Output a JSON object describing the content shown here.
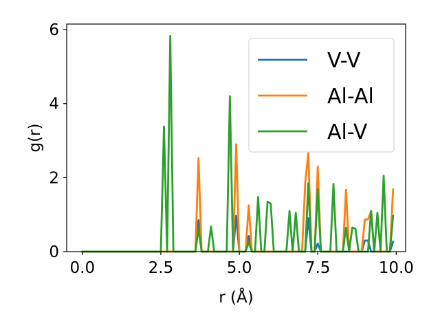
{
  "chart_data": {
    "type": "line",
    "title": "",
    "xlabel": "r (Å)",
    "ylabel": "g(r)",
    "xlim": [
      -0.5,
      10.3
    ],
    "ylim": [
      0,
      6.15
    ],
    "xticks": [
      0.0,
      2.5,
      5.0,
      7.5,
      10.0
    ],
    "xtick_labels": [
      "0.0",
      "2.5",
      "5.0",
      "7.5",
      "10.0"
    ],
    "yticks": [
      0,
      2,
      4,
      6
    ],
    "ytick_labels": [
      "0",
      "2",
      "4",
      "6"
    ],
    "grid": false,
    "legend_position": "top-right",
    "colors": {
      "V-V": "#1f77b4",
      "Al-Al": "#ff7f0e",
      "Al-V": "#2ca02c"
    },
    "x": [
      0.0,
      0.1,
      0.2,
      0.3,
      0.4,
      0.5,
      0.6,
      0.7,
      0.8,
      0.9,
      1.0,
      1.1,
      1.2,
      1.3,
      1.4,
      1.5,
      1.6,
      1.7,
      1.8,
      1.9,
      2.0,
      2.1,
      2.2,
      2.3,
      2.4,
      2.5,
      2.6,
      2.7,
      2.8,
      2.9,
      3.0,
      3.1,
      3.2,
      3.3,
      3.4,
      3.5,
      3.6,
      3.7,
      3.8,
      3.9,
      4.0,
      4.1,
      4.2,
      4.3,
      4.4,
      4.5,
      4.6,
      4.7,
      4.8,
      4.9,
      5.0,
      5.1,
      5.2,
      5.3,
      5.4,
      5.5,
      5.6,
      5.7,
      5.8,
      5.9,
      6.0,
      6.1,
      6.2,
      6.3,
      6.4,
      6.5,
      6.6,
      6.7,
      6.8,
      6.9,
      7.0,
      7.1,
      7.2,
      7.3,
      7.4,
      7.5,
      7.6,
      7.7,
      7.8,
      7.9,
      8.0,
      8.1,
      8.2,
      8.3,
      8.4,
      8.5,
      8.6,
      8.7,
      8.8,
      8.9,
      9.0,
      9.1,
      9.2,
      9.3,
      9.4,
      9.5,
      9.6,
      9.7,
      9.8,
      9.9
    ],
    "series": [
      {
        "name": "V-V",
        "values": [
          0,
          0,
          0,
          0,
          0,
          0,
          0,
          0,
          0,
          0,
          0,
          0,
          0,
          0,
          0,
          0,
          0,
          0,
          0,
          0,
          0,
          0,
          0,
          0,
          0,
          0,
          0,
          0,
          0,
          0,
          0,
          0,
          0,
          0,
          0,
          0,
          0,
          0.85,
          0,
          0,
          0,
          0,
          0,
          0,
          0,
          0,
          0,
          0,
          0,
          0.97,
          0,
          0,
          0,
          0.42,
          0,
          0,
          0,
          0,
          0,
          0,
          0,
          0,
          0,
          0,
          0,
          0,
          0,
          0,
          0,
          0,
          0,
          0,
          0.9,
          0,
          0,
          0.22,
          0,
          0,
          0,
          0,
          0,
          0,
          0,
          0,
          0,
          0,
          0,
          0,
          0,
          0,
          0.3,
          0.3,
          0,
          0,
          0,
          0,
          0,
          0,
          0,
          0.27
        ]
      },
      {
        "name": "Al-Al",
        "values": [
          0,
          0,
          0,
          0,
          0,
          0,
          0,
          0,
          0,
          0,
          0,
          0,
          0,
          0,
          0,
          0,
          0,
          0,
          0,
          0,
          0,
          0,
          0,
          0,
          0,
          0,
          0,
          0,
          0,
          0,
          0,
          0,
          0,
          0,
          0,
          0,
          0,
          2.53,
          0,
          0,
          0,
          0,
          0,
          0,
          0,
          0,
          0,
          0,
          0,
          2.9,
          0,
          0,
          0,
          1.25,
          0,
          0,
          0,
          0,
          0,
          0,
          0,
          0,
          0,
          0,
          0,
          0,
          0,
          0,
          0,
          0,
          0,
          1.85,
          2.67,
          0,
          0,
          2.3,
          0,
          0,
          0,
          0,
          0,
          0,
          0,
          0,
          1.67,
          0,
          0,
          0,
          0,
          0,
          0.87,
          0.87,
          1.1,
          0,
          0,
          0,
          0,
          0,
          0,
          1.68
        ]
      },
      {
        "name": "Al-V",
        "values": [
          0,
          0,
          0,
          0,
          0,
          0,
          0,
          0,
          0,
          0,
          0,
          0,
          0,
          0,
          0,
          0,
          0,
          0,
          0,
          0,
          0,
          0,
          0,
          0,
          0,
          0,
          3.38,
          0,
          5.83,
          0,
          0,
          0,
          0,
          0,
          0,
          0,
          0,
          0.62,
          0,
          0,
          0,
          0.68,
          0,
          0,
          0,
          0,
          0,
          4.2,
          0,
          0,
          0,
          0,
          0,
          0.25,
          0,
          0,
          1.48,
          0,
          0,
          1.35,
          1.3,
          0,
          0,
          0,
          0,
          0,
          1.1,
          0,
          1.05,
          0,
          0,
          0,
          1.85,
          0,
          0,
          1.68,
          0,
          0,
          0,
          0,
          1.83,
          0,
          0,
          0,
          0.65,
          0,
          0.65,
          0.62,
          0,
          0,
          0,
          0,
          1.1,
          0,
          1.05,
          0,
          2.05,
          0,
          0,
          0.97
        ]
      }
    ]
  }
}
